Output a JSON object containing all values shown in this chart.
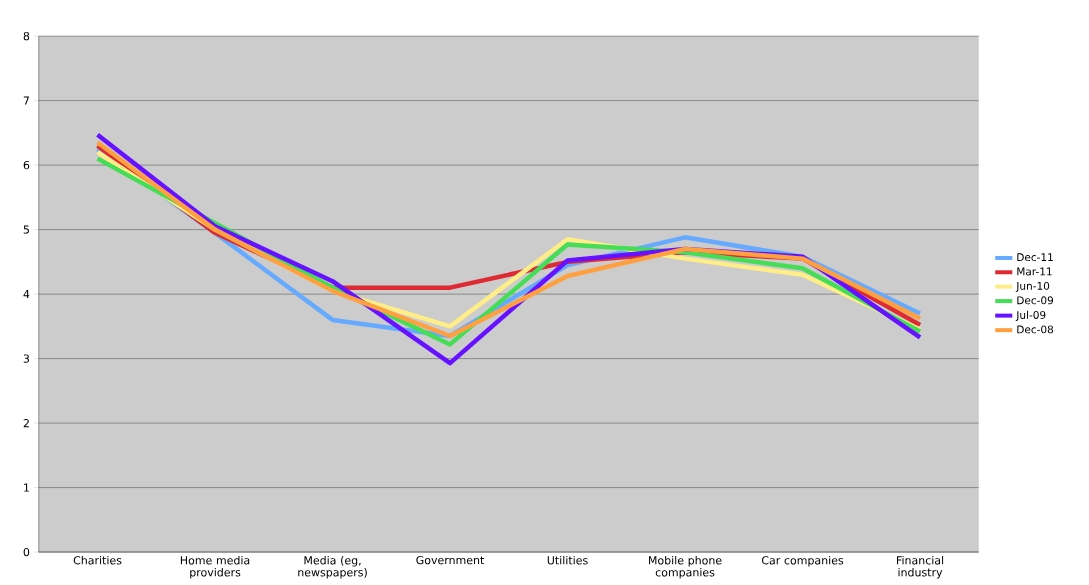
{
  "chart_data": {
    "type": "line",
    "categories": [
      "Charities",
      "Home media providers",
      "Media (eg, newspapers)",
      "Government",
      "Utilities",
      "Mobile phone companies",
      "Car companies",
      "Financial industry"
    ],
    "series": [
      {
        "name": "Dec-11",
        "color": "#66aaff",
        "values": [
          6.25,
          4.95,
          3.6,
          3.35,
          4.45,
          4.88,
          4.58,
          3.7
        ]
      },
      {
        "name": "Mar-11",
        "color": "#dd2a33",
        "values": [
          6.3,
          4.95,
          4.1,
          4.1,
          4.5,
          4.65,
          4.55,
          3.52
        ]
      },
      {
        "name": "Jun-10",
        "color": "#ffee88",
        "values": [
          6.2,
          5.0,
          4.05,
          3.5,
          4.85,
          4.55,
          4.3,
          3.45
        ]
      },
      {
        "name": "Dec-09",
        "color": "#44dd55",
        "values": [
          6.1,
          5.1,
          4.1,
          3.22,
          4.77,
          4.65,
          4.4,
          3.42
        ]
      },
      {
        "name": "Jul-09",
        "color": "#6611ff",
        "values": [
          6.47,
          5.05,
          4.2,
          2.93,
          4.52,
          4.7,
          4.58,
          3.33
        ]
      },
      {
        "name": "Dec-08",
        "color": "#ffa040",
        "values": [
          6.35,
          5.0,
          4.05,
          3.35,
          4.28,
          4.7,
          4.55,
          3.62
        ]
      }
    ],
    "ylim": [
      0,
      8
    ],
    "yticks": [
      0,
      1,
      2,
      3,
      4,
      5,
      6,
      7,
      8
    ],
    "grid": "y",
    "legend": "right",
    "marker": "none",
    "line_style": "solid"
  }
}
